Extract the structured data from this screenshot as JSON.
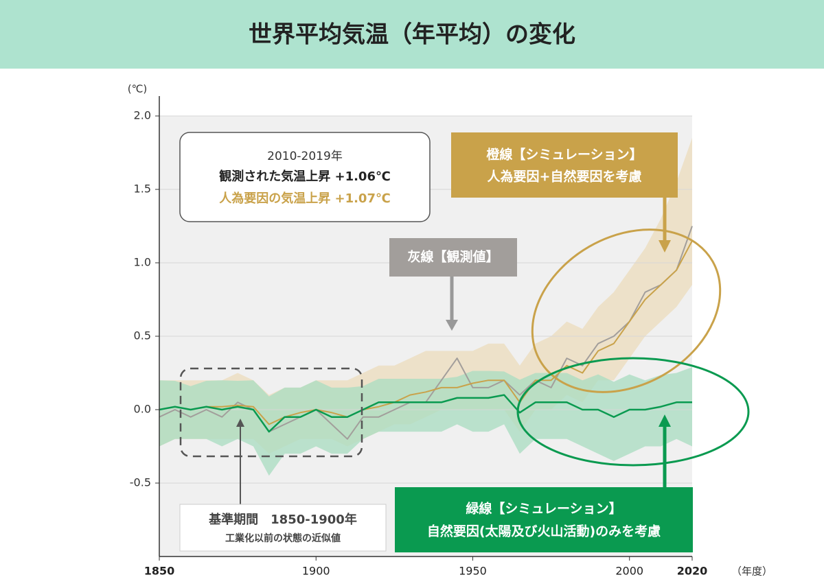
{
  "chart_data": {
    "type": "line",
    "title": "世界平均気温（年平均）の変化",
    "y_unit": "(℃)",
    "x_unit": "（年度）",
    "x": [
      1850,
      1855,
      1860,
      1865,
      1870,
      1875,
      1880,
      1885,
      1890,
      1895,
      1900,
      1905,
      1910,
      1915,
      1920,
      1925,
      1930,
      1935,
      1940,
      1945,
      1950,
      1955,
      1960,
      1965,
      1970,
      1975,
      1980,
      1985,
      1990,
      1995,
      2000,
      2005,
      2010,
      2015,
      2020
    ],
    "xlim": [
      1850,
      2020
    ],
    "xticks": [
      1850,
      1900,
      1950,
      2000,
      2020
    ],
    "ylim": [
      -1.0,
      2.0
    ],
    "yticks": [
      {
        "value": 2.0,
        "label": "2.0"
      },
      1.5,
      {
        "value": 1.0,
        "label": "1.0"
      },
      0.5,
      {
        "value": 0.0,
        "label": "0.0"
      },
      -0.5
    ],
    "grid": true,
    "series": [
      {
        "name": "灰線【観測値】",
        "color": "#a29e9b",
        "values": [
          -0.05,
          0.0,
          -0.05,
          0.0,
          -0.05,
          0.05,
          0.0,
          -0.15,
          -0.1,
          -0.05,
          0.0,
          -0.1,
          -0.2,
          -0.05,
          -0.05,
          0.0,
          0.05,
          0.05,
          0.2,
          0.35,
          0.15,
          0.15,
          0.2,
          0.1,
          0.2,
          0.15,
          0.35,
          0.3,
          0.45,
          0.5,
          0.6,
          0.8,
          0.85,
          0.95,
          1.25
        ]
      },
      {
        "name": "橙線【シミュレーション】",
        "color": "#c9a24a",
        "values": [
          0.0,
          0.02,
          0.0,
          0.02,
          0.02,
          0.03,
          0.02,
          -0.1,
          -0.05,
          -0.02,
          0.0,
          -0.02,
          -0.05,
          0.0,
          0.02,
          0.05,
          0.1,
          0.12,
          0.15,
          0.15,
          0.18,
          0.2,
          0.2,
          0.05,
          0.2,
          0.2,
          0.3,
          0.25,
          0.4,
          0.45,
          0.6,
          0.75,
          0.85,
          0.95,
          1.15
        ]
      },
      {
        "name": "緑線【シミュレーション】",
        "color": "#0a9a50",
        "values": [
          0.0,
          0.02,
          0.0,
          0.02,
          0.0,
          0.02,
          0.0,
          -0.15,
          -0.05,
          -0.05,
          0.0,
          -0.05,
          -0.05,
          0.0,
          0.05,
          0.05,
          0.05,
          0.05,
          0.05,
          0.08,
          0.08,
          0.08,
          0.1,
          -0.02,
          0.05,
          0.05,
          0.05,
          0.0,
          0.0,
          -0.05,
          0.0,
          0.0,
          0.02,
          0.05,
          0.05
        ]
      }
    ],
    "bands": [
      {
        "color": "#ecdcbc",
        "lower": [
          -0.25,
          -0.2,
          -0.2,
          -0.2,
          -0.2,
          -0.2,
          -0.2,
          -0.3,
          -0.25,
          -0.2,
          -0.2,
          -0.2,
          -0.25,
          -0.2,
          -0.15,
          -0.1,
          -0.1,
          -0.05,
          0.0,
          0.0,
          0.0,
          0.0,
          0.0,
          -0.15,
          0.0,
          0.0,
          0.1,
          0.05,
          0.2,
          0.2,
          0.35,
          0.5,
          0.6,
          0.7,
          0.85
        ],
        "upper": [
          0.2,
          0.2,
          0.2,
          0.2,
          0.2,
          0.25,
          0.2,
          0.1,
          0.15,
          0.15,
          0.2,
          0.2,
          0.2,
          0.25,
          0.3,
          0.3,
          0.35,
          0.4,
          0.4,
          0.4,
          0.4,
          0.45,
          0.45,
          0.3,
          0.45,
          0.5,
          0.6,
          0.55,
          0.7,
          0.8,
          0.95,
          1.1,
          1.3,
          1.55,
          1.85
        ]
      },
      {
        "color": "#a8dcc0",
        "lower": [
          -0.25,
          -0.2,
          -0.2,
          -0.2,
          -0.25,
          -0.2,
          -0.25,
          -0.45,
          -0.3,
          -0.3,
          -0.25,
          -0.3,
          -0.3,
          -0.2,
          -0.15,
          -0.15,
          -0.15,
          -0.15,
          -0.15,
          -0.1,
          -0.15,
          -0.15,
          -0.1,
          -0.3,
          -0.2,
          -0.2,
          -0.2,
          -0.25,
          -0.3,
          -0.35,
          -0.3,
          -0.25,
          -0.25,
          -0.2,
          -0.25
        ]
      },
      {
        "color": "#a8dcc0"
      }
    ],
    "annotations": {
      "period_box": [
        "2010-2019年",
        "観測された気温上昇 +1.06℃",
        "人為要因の気温上昇 +1.07℃"
      ],
      "gray_callout": "灰線【観測値】",
      "orange_callout": [
        "橙線【シミュレーション】",
        "人為要因+自然要因を考慮"
      ],
      "green_callout": [
        "緑線【シミュレーション】",
        "自然要因(太陽及び火山活動)のみを考慮"
      ],
      "base_box": [
        "基準期間　1850-1900年",
        "工業化以前の状態の近似値"
      ]
    }
  }
}
